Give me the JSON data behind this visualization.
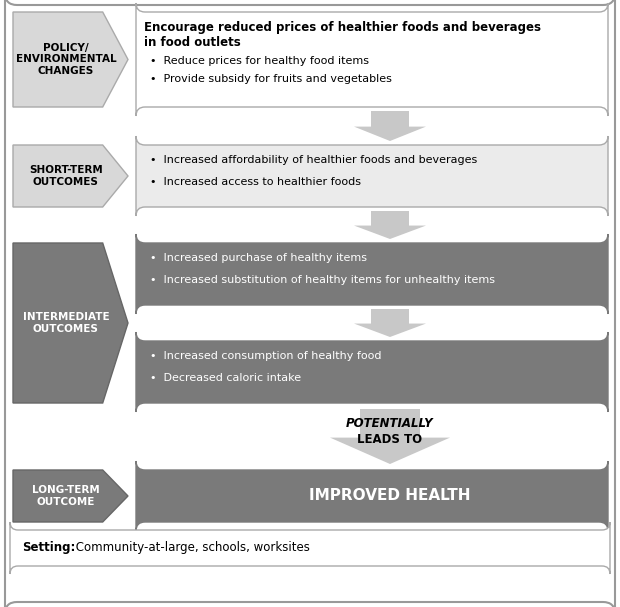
{
  "bg_color": "#ffffff",
  "light_box_bg": "#ffffff",
  "light_gray_box": "#e8e8e8",
  "dark_box_color": "#7a7a7a",
  "arrow_color": "#c0c0c0",
  "pent_light_color": "#d8d8d8",
  "pent_dark_color": "#7a7a7a",
  "border_color": "#999999",
  "text_dark": "#000000",
  "text_light": "#ffffff",
  "policy_label": "POLICY/\nENVIRONMENTAL\nCHANGES",
  "title_bold": "Encourage reduced prices of healthier foods and beverages\nin food outlets",
  "title_bullets": [
    "Reduce prices for healthy food items",
    "Provide subsidy for fruits and vegetables"
  ],
  "short_term_label": "SHORT-TERM\nOUTCOMES",
  "short_term_bullets": [
    "Increased affordability of healthier foods and beverages",
    "Increased access to healthier foods"
  ],
  "intermediate_label": "INTERMEDIATE\nOUTCOMES",
  "intermediate_bullets1": [
    "Increased purchase of healthy items",
    "Increased substitution of healthy items for unhealthy items"
  ],
  "intermediate_bullets2": [
    "Increased consumption of healthy food",
    "Decreased caloric intake"
  ],
  "potentially_line1": "POTENTIALLY",
  "potentially_line2": "LEADS TO",
  "long_term_label": "LONG-TERM\nOUTCOME",
  "long_term_text": "IMPROVED HEALTH",
  "setting_bold": "Setting:",
  "setting_rest": " Community-at-large, schools, worksites"
}
